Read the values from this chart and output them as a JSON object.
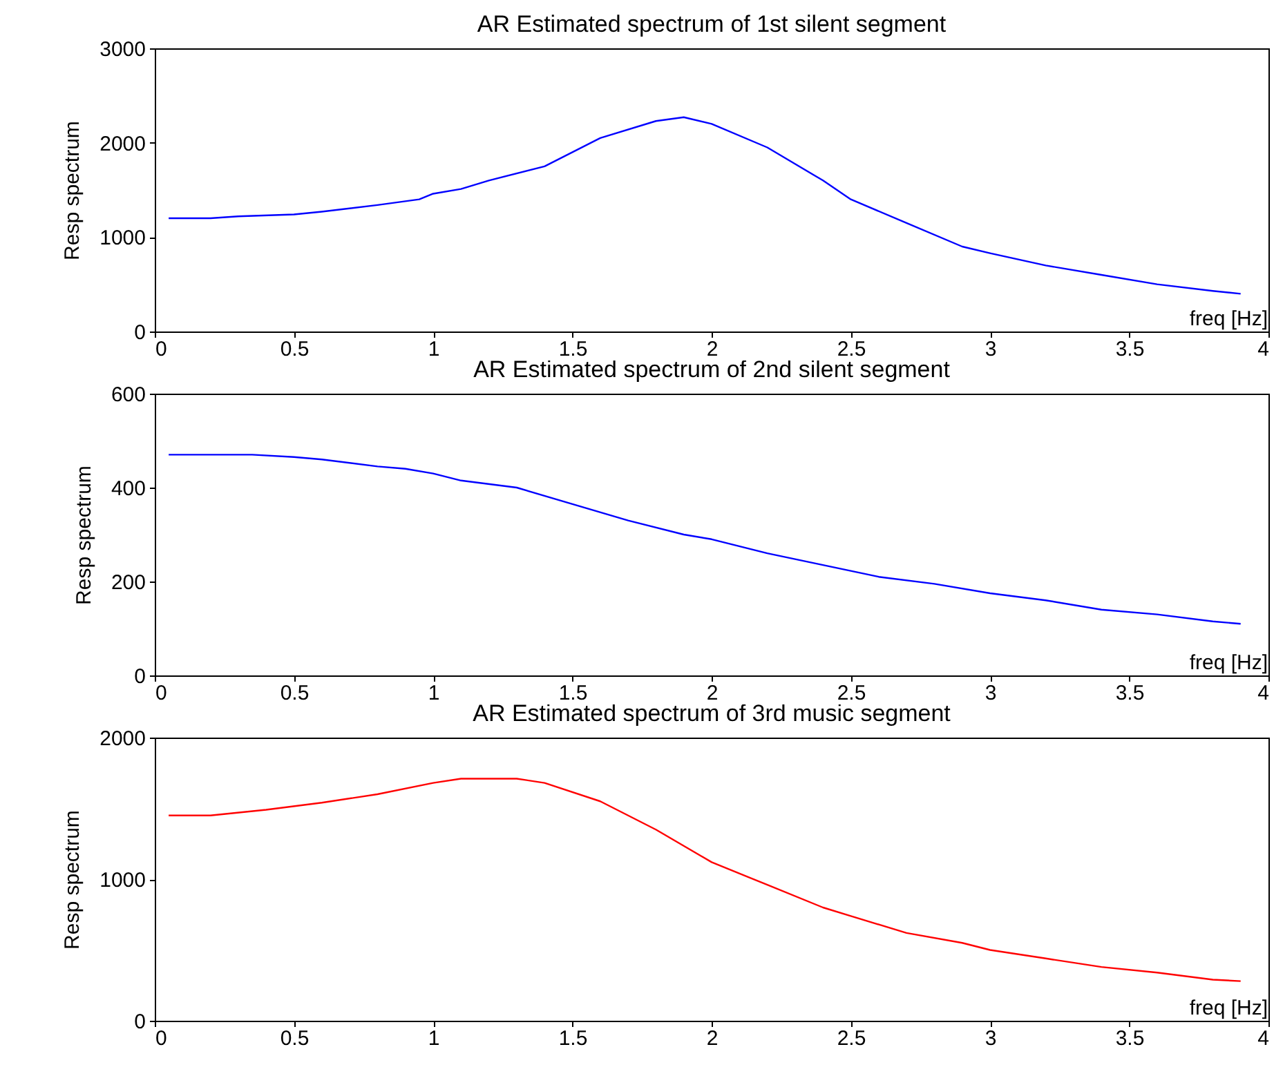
{
  "chart_data": [
    {
      "type": "line",
      "title": "AR Estimated spectrum of 1st silent segment",
      "xlabel": "freq [Hz]",
      "ylabel": "Resp spectrum",
      "xlim": [
        0,
        4
      ],
      "xticks": [
        0,
        0.5,
        1,
        1.5,
        2,
        2.5,
        3,
        3.5,
        4
      ],
      "ylim": [
        0,
        3000
      ],
      "yticks": [
        0,
        1000,
        2000,
        3000
      ],
      "x": [
        0.05,
        0.2,
        0.3,
        0.5,
        0.6,
        0.8,
        0.95,
        1.0,
        1.1,
        1.2,
        1.4,
        1.6,
        1.8,
        1.9,
        2.0,
        2.2,
        2.4,
        2.5,
        2.7,
        2.9,
        3.0,
        3.2,
        3.4,
        3.6,
        3.8,
        3.9
      ],
      "series": [
        {
          "color": "#0000ff",
          "values": [
            1200,
            1200,
            1220,
            1240,
            1270,
            1340,
            1400,
            1460,
            1510,
            1600,
            1750,
            2050,
            2230,
            2270,
            2200,
            1950,
            1600,
            1400,
            1150,
            900,
            830,
            700,
            600,
            500,
            430,
            400
          ]
        }
      ]
    },
    {
      "type": "line",
      "title": "AR Estimated spectrum of 2nd silent segment",
      "xlabel": "freq [Hz]",
      "ylabel": "Resp spectrum",
      "xlim": [
        0,
        4
      ],
      "xticks": [
        0,
        0.5,
        1,
        1.5,
        2,
        2.5,
        3,
        3.5,
        4
      ],
      "ylim": [
        0,
        600
      ],
      "yticks": [
        0,
        200,
        400,
        600
      ],
      "x": [
        0.05,
        0.35,
        0.5,
        0.6,
        0.8,
        0.9,
        1.0,
        1.1,
        1.3,
        1.5,
        1.7,
        1.9,
        2.0,
        2.2,
        2.4,
        2.6,
        2.8,
        3.0,
        3.2,
        3.4,
        3.6,
        3.8,
        3.9
      ],
      "series": [
        {
          "color": "#0000ff",
          "values": [
            470,
            470,
            465,
            460,
            445,
            440,
            430,
            415,
            400,
            365,
            330,
            300,
            290,
            260,
            235,
            210,
            195,
            175,
            160,
            140,
            130,
            115,
            110
          ]
        }
      ]
    },
    {
      "type": "line",
      "title": "AR Estimated spectrum of 3rd music segment",
      "xlabel": "freq [Hz]",
      "ylabel": "Resp spectrum",
      "xlim": [
        0,
        4
      ],
      "xticks": [
        0,
        0.5,
        1,
        1.5,
        2,
        2.5,
        3,
        3.5,
        4
      ],
      "ylim": [
        0,
        2000
      ],
      "yticks": [
        0,
        1000,
        2000
      ],
      "x": [
        0.05,
        0.2,
        0.4,
        0.6,
        0.8,
        1.0,
        1.1,
        1.3,
        1.4,
        1.6,
        1.8,
        2.0,
        2.2,
        2.4,
        2.5,
        2.7,
        2.9,
        3.0,
        3.2,
        3.4,
        3.6,
        3.8,
        3.9
      ],
      "series": [
        {
          "color": "#ff0000",
          "values": [
            1450,
            1450,
            1490,
            1540,
            1600,
            1680,
            1710,
            1710,
            1680,
            1550,
            1350,
            1120,
            960,
            800,
            740,
            620,
            550,
            500,
            440,
            380,
            340,
            290,
            280
          ]
        }
      ]
    }
  ]
}
